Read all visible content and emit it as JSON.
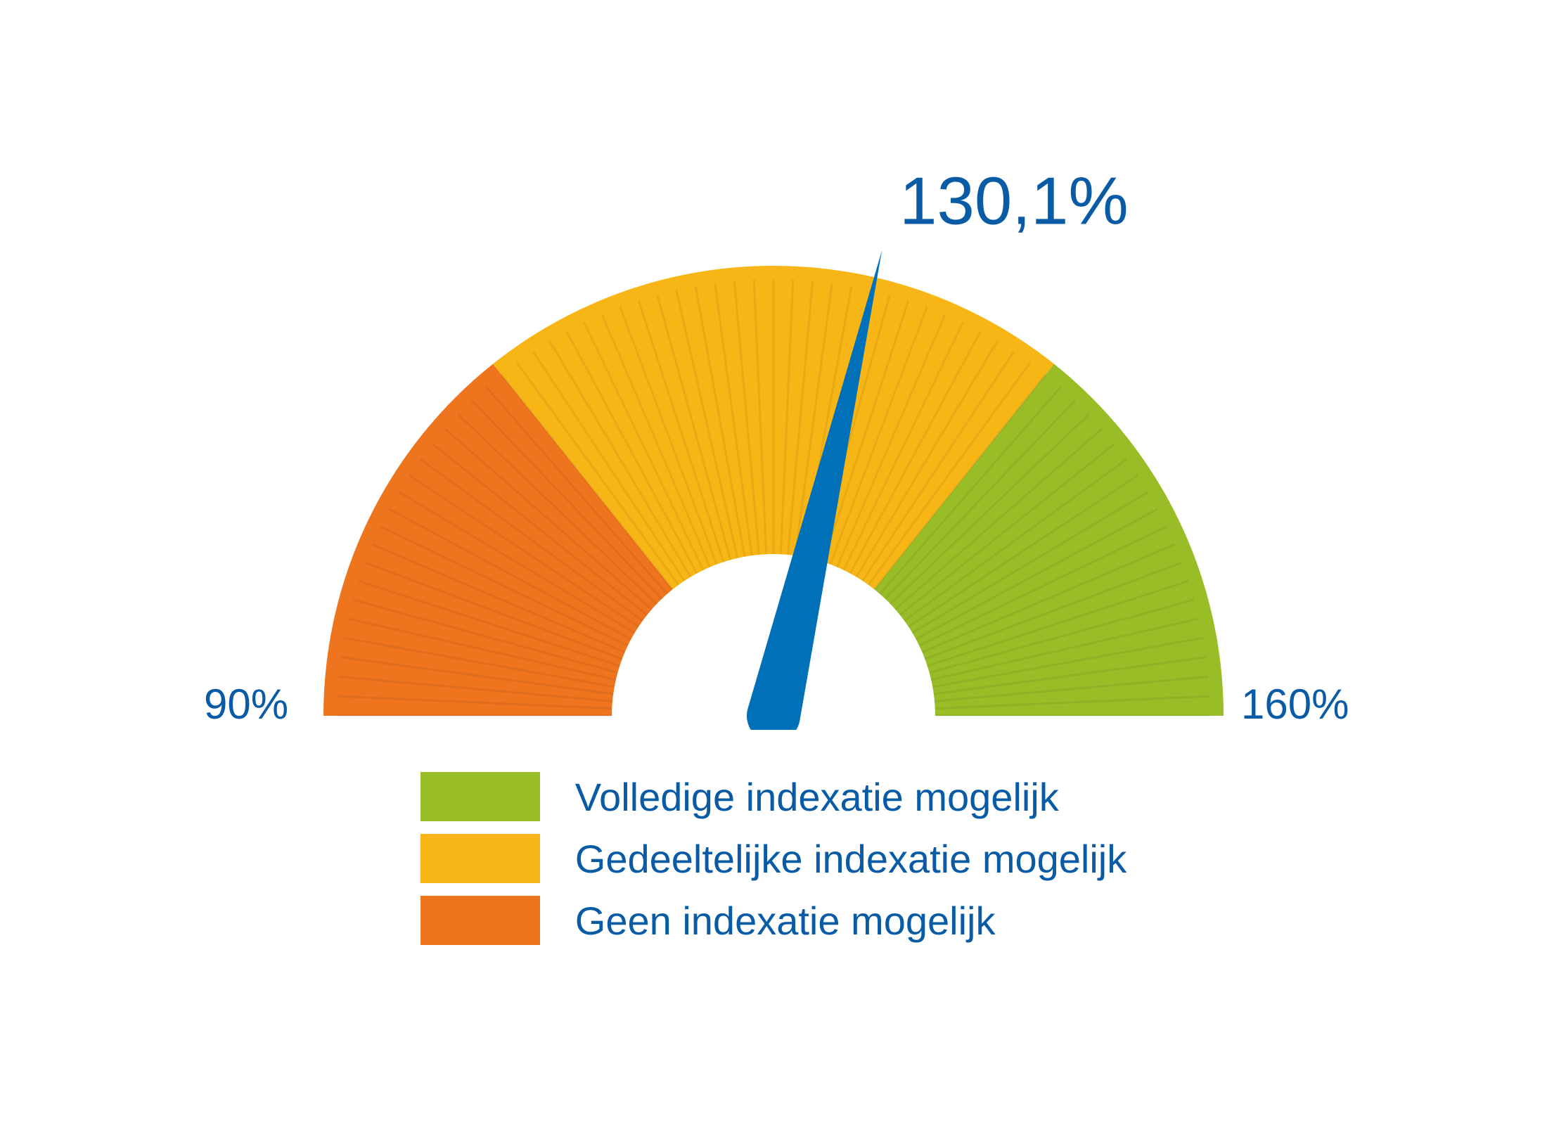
{
  "gauge": {
    "type": "gauge",
    "min": 90,
    "max": 160,
    "value": 130.1,
    "value_label": "130,1%",
    "min_label": "90%",
    "max_label": "160%",
    "outer_radius": 640,
    "inner_radius": 230,
    "needle_length": 680,
    "needle_base_halfwidth": 38,
    "segments": [
      {
        "from": 90,
        "to": 110,
        "color": "#ee741e"
      },
      {
        "from": 110,
        "to": 140,
        "color": "#f7b516"
      },
      {
        "from": 140,
        "to": 160,
        "color": "#99bd27"
      }
    ],
    "needle_color": "#0071b9",
    "text_color": "#0a5ba6",
    "value_fontsize": 96,
    "axis_fontsize": 60,
    "tick_step": 1,
    "tick_inner_ratio": 0.97,
    "background_color": "#ffffff"
  },
  "legend": {
    "swatch_width": 170,
    "swatch_height": 70,
    "label_fontsize": 56,
    "label_color": "#0a5ba6",
    "items": [
      {
        "color": "#99bd27",
        "label": "Volledige indexatie mogelijk"
      },
      {
        "color": "#f7b516",
        "label": "Gedeeltelijke indexatie mogelijk"
      },
      {
        "color": "#ee741e",
        "label": "Geen indexatie mogelijk"
      }
    ]
  }
}
